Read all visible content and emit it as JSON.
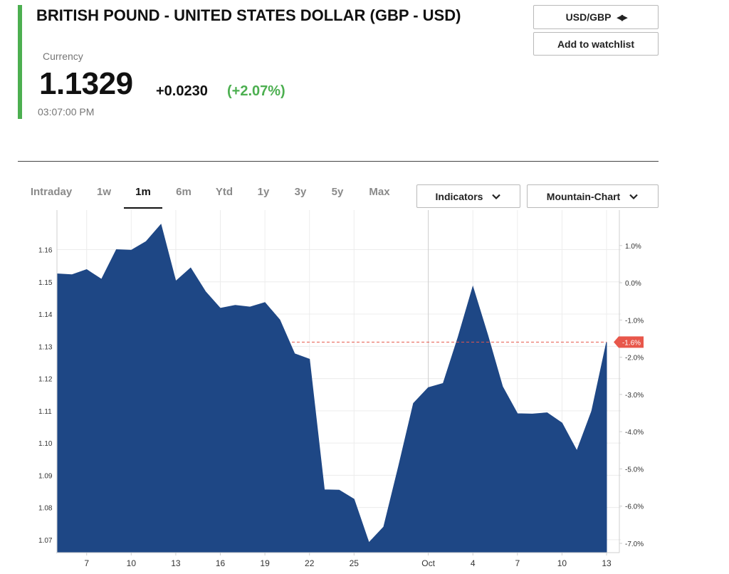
{
  "header": {
    "title": "BRITISH POUND - UNITED STATES DOLLAR (GBP - USD)",
    "subtitle": "Currency",
    "price": "1.1329",
    "change": "+0.0230",
    "change_pct": "(+2.07%)",
    "time": "03:07:00 PM",
    "accent_color": "#4caf50"
  },
  "buttons": {
    "currency_toggle": "USD/GBP",
    "currency_toggle_icon": "swap-arrows-icon",
    "watchlist": "Add to watchlist"
  },
  "range_tabs": [
    {
      "label": "Intraday",
      "active": false
    },
    {
      "label": "1w",
      "active": false
    },
    {
      "label": "1m",
      "active": true
    },
    {
      "label": "6m",
      "active": false
    },
    {
      "label": "Ytd",
      "active": false
    },
    {
      "label": "1y",
      "active": false
    },
    {
      "label": "3y",
      "active": false
    },
    {
      "label": "5y",
      "active": false
    },
    {
      "label": "Max",
      "active": false
    }
  ],
  "dropdowns": {
    "indicators": "Indicators",
    "chart_type": "Mountain-Chart",
    "chevron_icon": "chevron-down-icon"
  },
  "chart_data": {
    "type": "area",
    "fill_color": "#1e4785",
    "reference_line_color": "#e8574b",
    "x_index_range": [
      0,
      37
    ],
    "x_ticks": [
      {
        "label": "7",
        "index": 2
      },
      {
        "label": "10",
        "index": 5
      },
      {
        "label": "13",
        "index": 8
      },
      {
        "label": "16",
        "index": 11
      },
      {
        "label": "19",
        "index": 14
      },
      {
        "label": "22",
        "index": 17
      },
      {
        "label": "25",
        "index": 20
      },
      {
        "label": "Oct",
        "index": 25
      },
      {
        "label": "4",
        "index": 28
      },
      {
        "label": "7",
        "index": 31
      },
      {
        "label": "10",
        "index": 34
      },
      {
        "label": "13",
        "index": 37
      }
    ],
    "values": [
      1.1525,
      1.1522,
      1.1538,
      1.1508,
      1.16,
      1.1598,
      1.1625,
      1.1678,
      1.1502,
      1.1543,
      1.147,
      1.1418,
      1.1427,
      1.1422,
      1.1436,
      1.1382,
      1.1277,
      1.126,
      1.0855,
      1.0854,
      1.0826,
      1.0691,
      1.074,
      1.0928,
      1.1123,
      1.1172,
      1.1185,
      1.1328,
      1.1485,
      1.1335,
      1.1175,
      1.1091,
      1.109,
      1.1094,
      1.1062,
      1.0976,
      1.1099,
      1.1313
    ],
    "y_left": {
      "min": 1.066,
      "max": 1.1705,
      "ticks": [
        "1.07",
        "1.08",
        "1.09",
        "1.10",
        "1.11",
        "1.12",
        "1.13",
        "1.14",
        "1.15",
        "1.16"
      ]
    },
    "y_right": {
      "min": -7.25,
      "max": 1.8,
      "ticks": [
        "1.0%",
        "0.0%",
        "-1.0%",
        "-2.0%",
        "-3.0%",
        "-4.0%",
        "-5.0%",
        "-6.0%",
        "-7.0%"
      ]
    },
    "reference": {
      "value": 1.1313,
      "label": "-1.6%"
    },
    "vertical_markers": [
      "Oct"
    ],
    "grid": true
  }
}
